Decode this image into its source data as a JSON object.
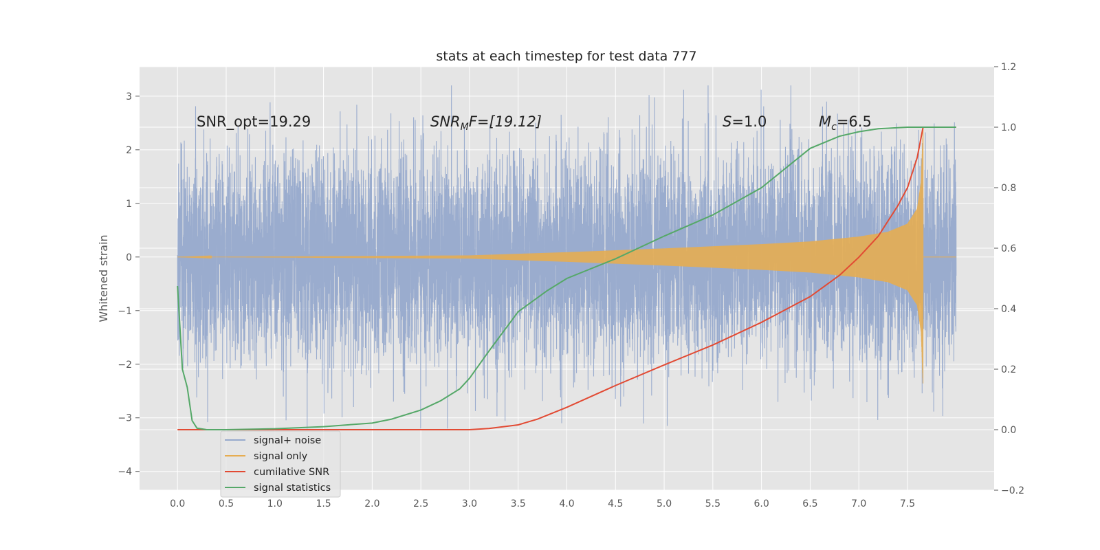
{
  "chart_data": {
    "type": "line",
    "title": "stats at each timestep for test data 777",
    "ylabel": "Whitened strain",
    "y2label": "",
    "xlim": [
      -0.39,
      8.39
    ],
    "ylim": [
      -4.35,
      3.55
    ],
    "y2lim": [
      -0.2,
      1.2
    ],
    "x_ticks": [
      "0.0",
      "0.5",
      "1.0",
      "1.5",
      "2.0",
      "2.5",
      "3.0",
      "3.5",
      "4.0",
      "4.5",
      "5.0",
      "5.5",
      "6.0",
      "6.5",
      "7.0",
      "7.5"
    ],
    "y_ticks": [
      "3",
      "2",
      "1",
      "0",
      "−1",
      "−2",
      "−3",
      "−4"
    ],
    "y2_ticks": [
      "1.2",
      "1.0",
      "0.8",
      "0.6",
      "0.4",
      "0.2",
      "0.0",
      "−0.2"
    ],
    "grid": true,
    "legend_position": "lower-left",
    "annotations": [
      {
        "id": "snr-opt",
        "text": "SNR_opt=19.29"
      },
      {
        "id": "snr-mf",
        "main": "SNR",
        "sub": "M",
        "rest": "F=[19.12]"
      },
      {
        "id": "s",
        "italic": "S",
        "rest": "=1.0"
      },
      {
        "id": "mc",
        "italic": "M",
        "sub": "c",
        "rest": "=6.5"
      }
    ],
    "series": [
      {
        "name": "signal+ noise",
        "color": "#96a9cc",
        "axis": "left",
        "sample_rate_hz": 1024,
        "t_range": [
          0.0,
          8.0
        ],
        "noise_sigma": 0.95
      },
      {
        "name": "signal only",
        "color": "#e6ad52",
        "axis": "left",
        "t_range": [
          0.0,
          7.66
        ],
        "amplitude_envelope": {
          "t": [
            0,
            3.0,
            4.0,
            5.0,
            6.0,
            6.5,
            7.0,
            7.3,
            7.5,
            7.6,
            7.64,
            7.66
          ],
          "amp": [
            0,
            0.03,
            0.09,
            0.16,
            0.24,
            0.29,
            0.38,
            0.47,
            0.62,
            0.9,
            1.4,
            2.4
          ]
        }
      },
      {
        "name": "cumilative SNR",
        "color": "#e24a33",
        "axis": "right",
        "x": [
          0.0,
          1.0,
          2.0,
          3.0,
          3.2,
          3.5,
          3.7,
          4.0,
          4.5,
          5.0,
          5.5,
          6.0,
          6.5,
          6.8,
          7.0,
          7.2,
          7.4,
          7.5,
          7.6,
          7.66,
          8.0
        ],
        "y": [
          0.0,
          0.0,
          0.0,
          0.0,
          0.004,
          0.016,
          0.035,
          0.074,
          0.146,
          0.214,
          0.28,
          0.355,
          0.44,
          0.51,
          0.57,
          0.64,
          0.74,
          0.8,
          0.9,
          1.0,
          1.0
        ]
      },
      {
        "name": "signal statistics",
        "color": "#55a868",
        "axis": "right",
        "x": [
          0.0,
          0.05,
          0.1,
          0.15,
          0.2,
          0.3,
          0.5,
          1.0,
          1.5,
          2.0,
          2.2,
          2.5,
          2.7,
          2.9,
          3.0,
          3.2,
          3.5,
          3.8,
          4.0,
          4.5,
          5.0,
          5.5,
          6.0,
          6.5,
          6.8,
          7.0,
          7.2,
          7.5,
          7.66,
          8.0
        ],
        "y": [
          0.475,
          0.2,
          0.14,
          0.03,
          0.005,
          0.0,
          0.0,
          0.003,
          0.01,
          0.022,
          0.035,
          0.065,
          0.095,
          0.135,
          0.17,
          0.26,
          0.39,
          0.46,
          0.5,
          0.565,
          0.64,
          0.71,
          0.8,
          0.93,
          0.97,
          0.985,
          0.995,
          1.0,
          1.0,
          1.0
        ]
      }
    ]
  }
}
